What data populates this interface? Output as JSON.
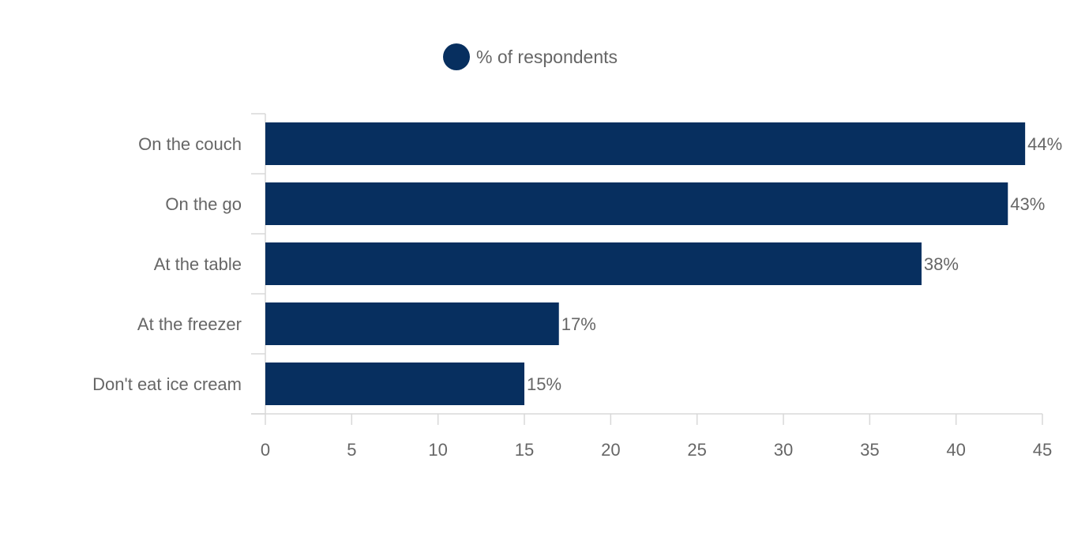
{
  "legend": {
    "label": "% of respondents",
    "placement": "top-center"
  },
  "colors": {
    "bar": "#072f5f",
    "axis": "#d8d8d8",
    "text": "#666666"
  },
  "chart_data": {
    "type": "bar",
    "orientation": "horizontal",
    "categories": [
      "On the couch",
      "On the go",
      "At the table",
      "At the freezer",
      "Don't eat ice cream"
    ],
    "series": [
      {
        "name": "% of respondents",
        "values": [
          44,
          43,
          38,
          17,
          15
        ]
      }
    ],
    "data_labels": [
      "44%",
      "43%",
      "38%",
      "17%",
      "15%"
    ],
    "xlim": [
      0,
      45
    ],
    "x_ticks": [
      0,
      5,
      10,
      15,
      20,
      25,
      30,
      35,
      40,
      45
    ],
    "grid": false,
    "title": "",
    "xlabel": "",
    "ylabel": ""
  }
}
